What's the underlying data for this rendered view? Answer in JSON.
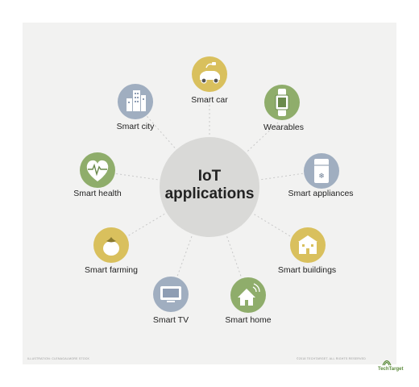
{
  "center": {
    "line1": "IoT",
    "line2": "applications"
  },
  "nodes": [
    {
      "label": "Smart car",
      "icon": "car-icon",
      "color": "#d9c05d"
    },
    {
      "label": "Wearables",
      "icon": "smartwatch-icon",
      "color": "#8fad6b"
    },
    {
      "label": "Smart appliances",
      "icon": "refrigerator-icon",
      "color": "#a0aec0"
    },
    {
      "label": "Smart buildings",
      "icon": "building-icon",
      "color": "#d9c05d"
    },
    {
      "label": "Smart home",
      "icon": "home-wifi-icon",
      "color": "#8fad6b"
    },
    {
      "label": "Smart TV",
      "icon": "tv-icon",
      "color": "#a0aec0"
    },
    {
      "label": "Smart farming",
      "icon": "tomato-icon",
      "color": "#d9c05d"
    },
    {
      "label": "Smart health",
      "icon": "heart-pulse-icon",
      "color": "#8fad6b"
    },
    {
      "label": "Smart city",
      "icon": "city-buildings-icon",
      "color": "#a0aec0"
    }
  ],
  "footer": {
    "left": "ILLUSTRATION: CLENAGALMORE STOCK",
    "right": "©2018 TECHTARGET. ALL RIGHTS RESERVED",
    "brand": "TechTarget"
  }
}
